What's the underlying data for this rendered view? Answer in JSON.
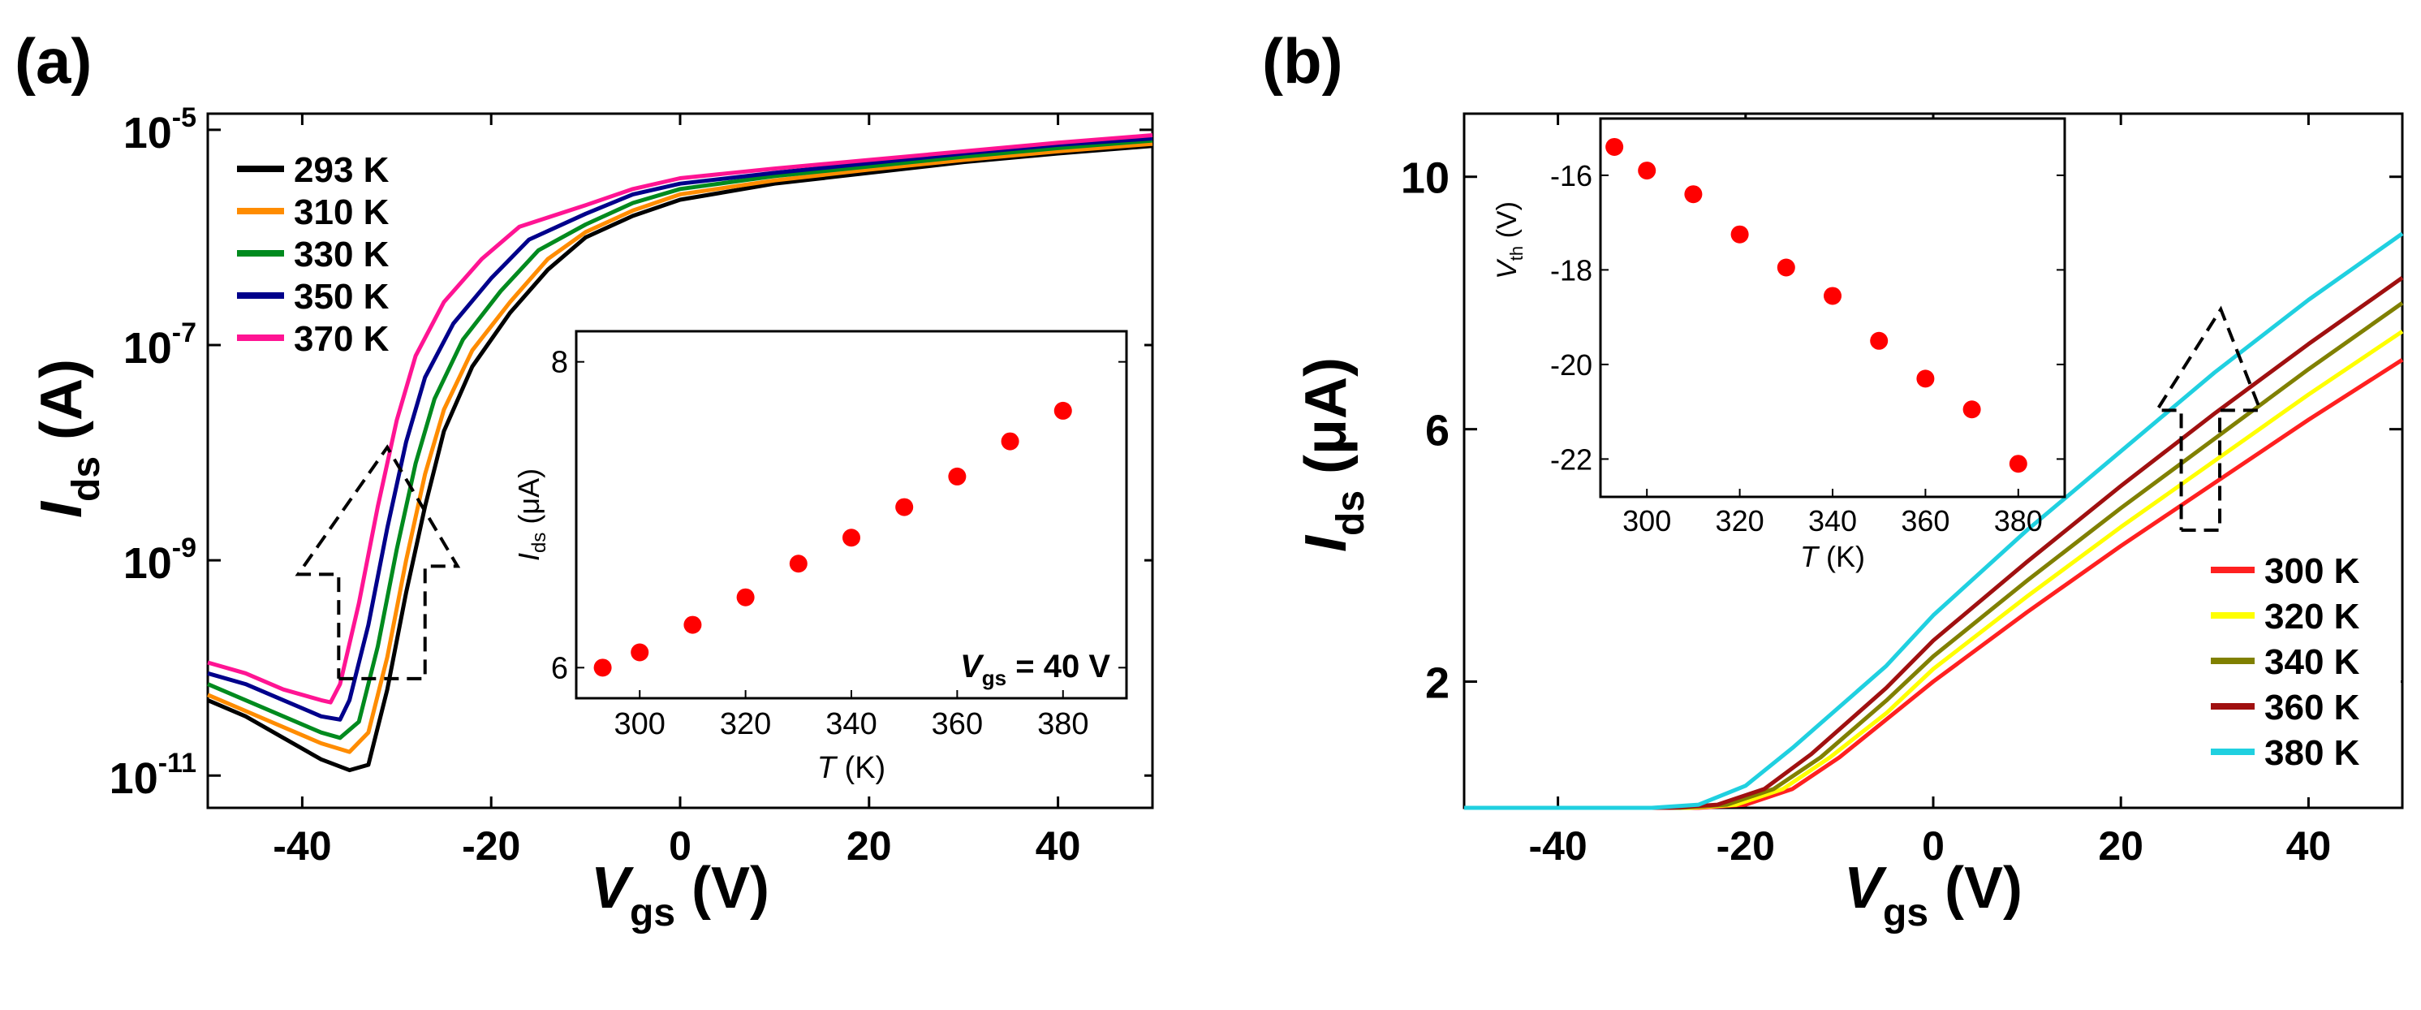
{
  "colors": {
    "axis": "#000000",
    "marker": "#ff0000",
    "a_293": "#000000",
    "a_310": "#ff8c00",
    "a_330": "#008a1e",
    "a_350": "#00008b",
    "a_370": "#ff1493",
    "b_300": "#ff2020",
    "b_320": "#ffff00",
    "b_340": "#808000",
    "b_360": "#a01010",
    "b_380": "#20d0e0"
  },
  "chart_data": [
    {
      "panel": "(a)",
      "type": "line",
      "title": "",
      "xlabel_main": "V",
      "xlabel_sub": "gs",
      "xlabel_unit": "(V)",
      "ylabel_main": "I",
      "ylabel_sub": "ds",
      "ylabel_unit": "(A)",
      "xlim": [
        -50,
        50
      ],
      "ylim_log10": [
        -11.3,
        -4.85
      ],
      "yscale": "log",
      "xticks": [
        -40,
        -20,
        0,
        20,
        40
      ],
      "xtick_labels": [
        "-40",
        "-20",
        "0",
        "20",
        "40"
      ],
      "yticks_log10": [
        -11,
        -9,
        -7,
        -5
      ],
      "ytick_base": "10",
      "ytick_exps": [
        "-11",
        "-9",
        "-7",
        "-5"
      ],
      "legend_position": "top-left",
      "series": [
        {
          "name": "293 K",
          "color_key": "a_293",
          "x": [
            -50,
            -46,
            -42,
            -38,
            -35,
            -33,
            -31,
            -29,
            -27,
            -25,
            -22,
            -18,
            -14,
            -10,
            -5,
            0,
            10,
            20,
            30,
            40,
            50
          ],
          "log10_y": [
            -10.3,
            -10.45,
            -10.65,
            -10.85,
            -10.95,
            -10.9,
            -10.2,
            -9.3,
            -8.5,
            -7.8,
            -7.2,
            -6.7,
            -6.3,
            -6.0,
            -5.8,
            -5.65,
            -5.5,
            -5.4,
            -5.3,
            -5.22,
            -5.15
          ]
        },
        {
          "name": "310 K",
          "color_key": "a_310",
          "x": [
            -50,
            -46,
            -42,
            -38,
            -35,
            -33,
            -31,
            -29,
            -27,
            -25,
            -22,
            -18,
            -14,
            -10,
            -5,
            0,
            10,
            20,
            30,
            40,
            50
          ],
          "log10_y": [
            -10.25,
            -10.4,
            -10.55,
            -10.7,
            -10.78,
            -10.6,
            -9.9,
            -9.0,
            -8.2,
            -7.6,
            -7.05,
            -6.6,
            -6.2,
            -5.95,
            -5.75,
            -5.6,
            -5.47,
            -5.37,
            -5.28,
            -5.2,
            -5.13
          ]
        },
        {
          "name": "330 K",
          "color_key": "a_330",
          "x": [
            -50,
            -46,
            -42,
            -38,
            -36,
            -34,
            -32,
            -30,
            -28,
            -26,
            -23,
            -19,
            -15,
            -10,
            -5,
            0,
            10,
            20,
            30,
            40,
            50
          ],
          "log10_y": [
            -10.15,
            -10.3,
            -10.45,
            -10.6,
            -10.65,
            -10.5,
            -9.8,
            -8.9,
            -8.1,
            -7.5,
            -6.95,
            -6.5,
            -6.12,
            -5.88,
            -5.68,
            -5.55,
            -5.43,
            -5.34,
            -5.25,
            -5.17,
            -5.1
          ]
        },
        {
          "name": "350 K",
          "color_key": "a_350",
          "x": [
            -50,
            -46,
            -42,
            -38,
            -36,
            -35,
            -33,
            -31,
            -29,
            -27,
            -24,
            -20,
            -16,
            -10,
            -5,
            0,
            10,
            20,
            30,
            40,
            50
          ],
          "log10_y": [
            -10.05,
            -10.15,
            -10.3,
            -10.45,
            -10.48,
            -10.3,
            -9.6,
            -8.7,
            -7.9,
            -7.3,
            -6.8,
            -6.38,
            -6.02,
            -5.78,
            -5.6,
            -5.5,
            -5.4,
            -5.31,
            -5.22,
            -5.14,
            -5.08
          ]
        },
        {
          "name": "370 K",
          "color_key": "a_370",
          "x": [
            -50,
            -46,
            -42,
            -38,
            -37,
            -36,
            -34,
            -32,
            -30,
            -28,
            -25,
            -21,
            -17,
            -10,
            -5,
            0,
            10,
            20,
            30,
            40,
            50
          ],
          "log10_y": [
            -9.95,
            -10.05,
            -10.2,
            -10.3,
            -10.32,
            -10.15,
            -9.4,
            -8.5,
            -7.7,
            -7.1,
            -6.6,
            -6.2,
            -5.9,
            -5.7,
            -5.55,
            -5.45,
            -5.36,
            -5.28,
            -5.2,
            -5.12,
            -5.05
          ]
        }
      ],
      "arrow": {
        "x": [
          -37,
          -27
        ],
        "log10_y": [
          -10.1,
          -8.2
        ],
        "direction": "left-up"
      },
      "inset": {
        "type": "scatter",
        "xlabel_main": "T",
        "xlabel_unit": "(K)",
        "ylabel_main": "I",
        "ylabel_sub": "ds",
        "ylabel_unit": "(μA)",
        "xlim": [
          288,
          392
        ],
        "ylim": [
          5.8,
          8.2
        ],
        "xticks": [
          300,
          320,
          340,
          360,
          380
        ],
        "xtick_labels": [
          "300",
          "320",
          "340",
          "360",
          "380"
        ],
        "yticks": [
          6,
          8
        ],
        "ytick_labels": [
          "6",
          "8"
        ],
        "annotation_main": "V",
        "annotation_sub": "gs",
        "annotation_rest": " = 40 V",
        "x": [
          293,
          300,
          310,
          320,
          330,
          340,
          350,
          360,
          370,
          380
        ],
        "y": [
          6.0,
          6.1,
          6.28,
          6.46,
          6.68,
          6.85,
          7.05,
          7.25,
          7.48,
          7.68
        ]
      }
    },
    {
      "panel": "(b)",
      "type": "line",
      "title": "",
      "xlabel_main": "V",
      "xlabel_sub": "gs",
      "xlabel_unit": "(V)",
      "ylabel_main": "I",
      "ylabel_sub": "ds",
      "ylabel_unit": "(μA)",
      "xlim": [
        -50,
        50
      ],
      "ylim": [
        0,
        11
      ],
      "yscale": "linear",
      "xticks": [
        -40,
        -20,
        0,
        20,
        40
      ],
      "xtick_labels": [
        "-40",
        "-20",
        "0",
        "20",
        "40"
      ],
      "yticks": [
        2,
        6,
        10
      ],
      "ytick_labels": [
        "2",
        "6",
        "10"
      ],
      "legend_position": "bottom-right",
      "series": [
        {
          "name": "300 K",
          "color_key": "b_300",
          "x": [
            -50,
            -25,
            -20,
            -15,
            -10,
            -5,
            0,
            10,
            20,
            30,
            40,
            50
          ],
          "y": [
            0,
            0,
            0.05,
            0.3,
            0.8,
            1.4,
            2.0,
            3.1,
            4.15,
            5.15,
            6.15,
            7.1
          ]
        },
        {
          "name": "320 K",
          "color_key": "b_320",
          "x": [
            -50,
            -26,
            -21,
            -16,
            -11,
            -5,
            0,
            10,
            20,
            30,
            40,
            50
          ],
          "y": [
            0,
            0,
            0.05,
            0.3,
            0.8,
            1.5,
            2.2,
            3.35,
            4.45,
            5.5,
            6.55,
            7.55
          ]
        },
        {
          "name": "340 K",
          "color_key": "b_340",
          "x": [
            -50,
            -27,
            -22,
            -17,
            -12,
            -5,
            0,
            10,
            20,
            30,
            40,
            50
          ],
          "y": [
            0,
            0,
            0.05,
            0.3,
            0.8,
            1.7,
            2.4,
            3.6,
            4.75,
            5.85,
            6.95,
            8.0
          ]
        },
        {
          "name": "360 K",
          "color_key": "b_360",
          "x": [
            -50,
            -28,
            -23,
            -18,
            -13,
            -5,
            0,
            10,
            20,
            30,
            40,
            50
          ],
          "y": [
            0,
            0,
            0.05,
            0.3,
            0.85,
            1.9,
            2.65,
            3.9,
            5.1,
            6.25,
            7.35,
            8.4
          ]
        },
        {
          "name": "380 K",
          "color_key": "b_380",
          "x": [
            -50,
            -30,
            -25,
            -20,
            -15,
            -5,
            0,
            10,
            20,
            30,
            40,
            50
          ],
          "y": [
            0,
            0,
            0.05,
            0.35,
            0.95,
            2.25,
            3.05,
            4.4,
            5.65,
            6.9,
            8.05,
            9.1
          ]
        }
      ],
      "arrow": {
        "x": [
          26,
          34
        ],
        "y": [
          4.4,
          7.9
        ],
        "direction": "up"
      },
      "inset": {
        "type": "scatter",
        "xlabel_main": "T",
        "xlabel_unit": "(K)",
        "ylabel_main": "V",
        "ylabel_sub": "th",
        "ylabel_unit": "(V)",
        "xlim": [
          290,
          390
        ],
        "ylim": [
          -22.8,
          -14.8
        ],
        "xticks": [
          300,
          320,
          340,
          360,
          380
        ],
        "xtick_labels": [
          "300",
          "320",
          "340",
          "360",
          "380"
        ],
        "yticks": [
          -22,
          -20,
          -18,
          -16
        ],
        "ytick_labels": [
          "-22",
          "-20",
          "-18",
          "-16"
        ],
        "x": [
          293,
          300,
          310,
          320,
          330,
          340,
          350,
          360,
          370,
          380
        ],
        "y": [
          -15.4,
          -15.9,
          -16.4,
          -17.25,
          -17.95,
          -18.55,
          -19.5,
          -20.3,
          -20.95,
          -22.1
        ]
      }
    }
  ]
}
